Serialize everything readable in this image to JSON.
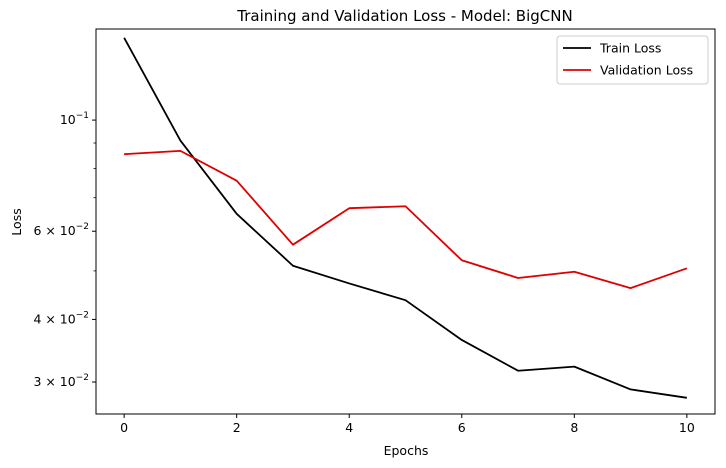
{
  "chart_data": {
    "type": "line",
    "title": "Training and Validation Loss - Model: BigCNN",
    "xlabel": "Epochs",
    "ylabel": "Loss",
    "yscale": "log",
    "x": [
      0,
      1,
      2,
      3,
      4,
      5,
      6,
      7,
      8,
      9,
      10
    ],
    "xlim": [
      -0.5,
      10.5
    ],
    "ylim": [
      0.0259,
      0.152
    ],
    "x_ticks": [
      "0",
      "2",
      "4",
      "6",
      "8",
      "10"
    ],
    "y_ticks": [
      {
        "value": 0.1,
        "base": "10",
        "exp": "−1"
      },
      {
        "value": 0.06,
        "base": "6 × 10",
        "exp": "−2"
      },
      {
        "value": 0.04,
        "base": "4 × 10",
        "exp": "−2"
      },
      {
        "value": 0.03,
        "base": "3 × 10",
        "exp": "−2"
      }
    ],
    "series": [
      {
        "name": "Train Loss",
        "color": "#000000",
        "values": [
          0.146,
          0.091,
          0.065,
          0.0512,
          0.0472,
          0.0437,
          0.0364,
          0.0316,
          0.0322,
          0.029,
          0.0279
        ]
      },
      {
        "name": "Validation Loss",
        "color": "#dd0000",
        "values": [
          0.0855,
          0.0868,
          0.0757,
          0.0564,
          0.0667,
          0.0673,
          0.0525,
          0.0484,
          0.0498,
          0.0462,
          0.0506
        ]
      }
    ],
    "grid": false,
    "legend_position": "top-right"
  }
}
